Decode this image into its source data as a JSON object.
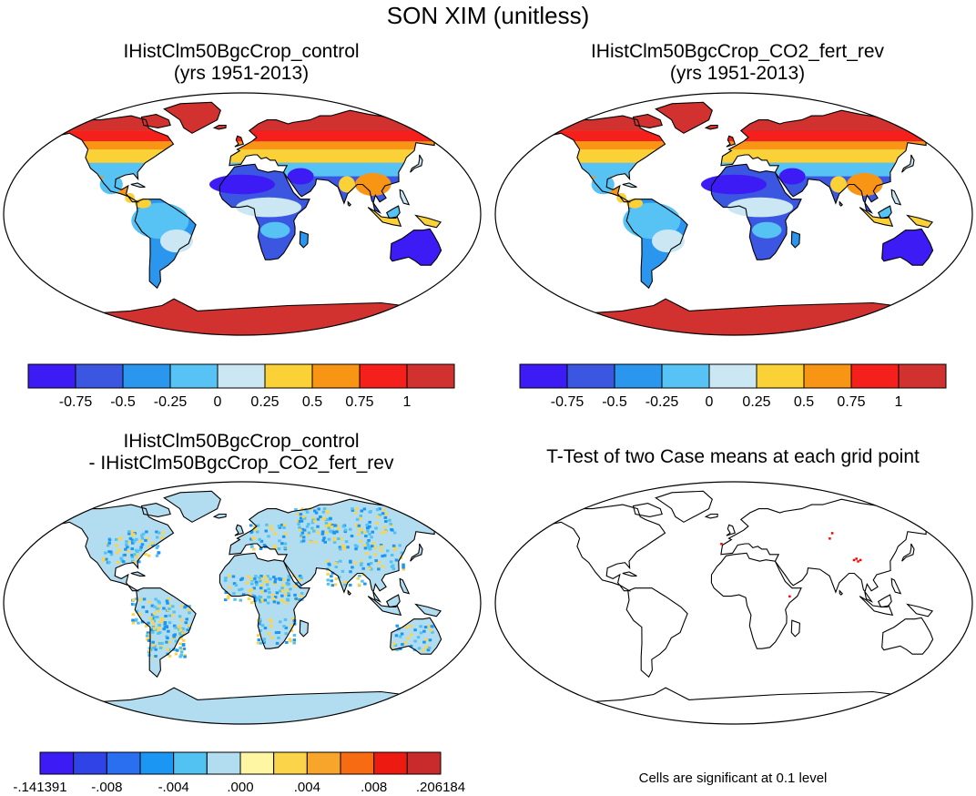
{
  "figure": {
    "title": "SON XIM (unitless)"
  },
  "panels": [
    {
      "title_line1": "IHistClm50BgcCrop_control",
      "title_line2": "(yrs 1951-2013)"
    },
    {
      "title_line1": "IHistClm50BgcCrop_CO2_fert_rev",
      "title_line2": "(yrs 1951-2013)"
    },
    {
      "title_line1": "IHistClm50BgcCrop_control",
      "title_line2": "- IHistClm50BgcCrop_CO2_fert_rev"
    },
    {
      "title_line1": "T-Test of two Case means at each grid point"
    }
  ],
  "colorbar_main": {
    "colors": [
      "#3d1bf5",
      "#3b57e2",
      "#2a96ee",
      "#57c3f4",
      "#cbe7f4",
      "#fbd138",
      "#f99514",
      "#f51f1b",
      "#d2322f"
    ],
    "labels": [
      "-0.75",
      "-0.5",
      "-0.25",
      "0",
      "0.25",
      "0.5",
      "0.75",
      "1"
    ]
  },
  "colorbar_diff": {
    "colors": [
      "#3d1bf5",
      "#2f43e6",
      "#2a6ff0",
      "#1b96f2",
      "#52c2f2",
      "#b2dcef",
      "#fff6a3",
      "#fcd449",
      "#f8a52b",
      "#f76b12",
      "#ed1a12",
      "#c92a2b"
    ],
    "labels": [
      "-.141391",
      "-.008",
      "-.004",
      ".000",
      ".004",
      ".008",
      ".206184"
    ]
  },
  "ttest_note": "Cells are significant at 0.1 level",
  "colors": {
    "land_outline": "#000000",
    "ocean": "#ffffff",
    "significant": "#ff0000",
    "diff_background": "#b2dcef"
  }
}
